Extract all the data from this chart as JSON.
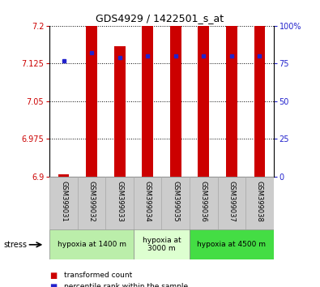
{
  "title": "GDS4929 / 1422501_s_at",
  "samples": [
    "GSM399031",
    "GSM399032",
    "GSM399033",
    "GSM399034",
    "GSM399035",
    "GSM399036",
    "GSM399037",
    "GSM399038"
  ],
  "bar_values": [
    6.905,
    7.2,
    7.16,
    7.2,
    7.2,
    7.2,
    7.2,
    7.2
  ],
  "percentile_values": [
    77,
    82,
    79,
    80,
    80,
    80,
    80,
    80
  ],
  "ymin": 6.9,
  "ymax": 7.2,
  "pct_min": 0,
  "pct_max": 100,
  "yticks": [
    6.9,
    6.975,
    7.05,
    7.125,
    7.2
  ],
  "pct_ticks": [
    0,
    25,
    50,
    75,
    100
  ],
  "bar_color": "#cc0000",
  "dot_color": "#2222cc",
  "groups": [
    {
      "label": "hypoxia at 1400 m",
      "start": 0,
      "end": 3,
      "color": "#bbeeaa"
    },
    {
      "label": "hypoxia at\n3000 m",
      "start": 3,
      "end": 5,
      "color": "#ddffd0"
    },
    {
      "label": "hypoxia at 4500 m",
      "start": 5,
      "end": 8,
      "color": "#44dd44"
    }
  ],
  "stress_label": "stress",
  "legend_items": [
    {
      "color": "#cc0000",
      "label": "transformed count"
    },
    {
      "color": "#2222cc",
      "label": "percentile rank within the sample"
    }
  ],
  "bar_width": 0.4,
  "tick_label_color_left": "#cc0000",
  "tick_label_color_right": "#2222cc",
  "sample_bg": "#cccccc",
  "sample_edge": "#aaaaaa"
}
